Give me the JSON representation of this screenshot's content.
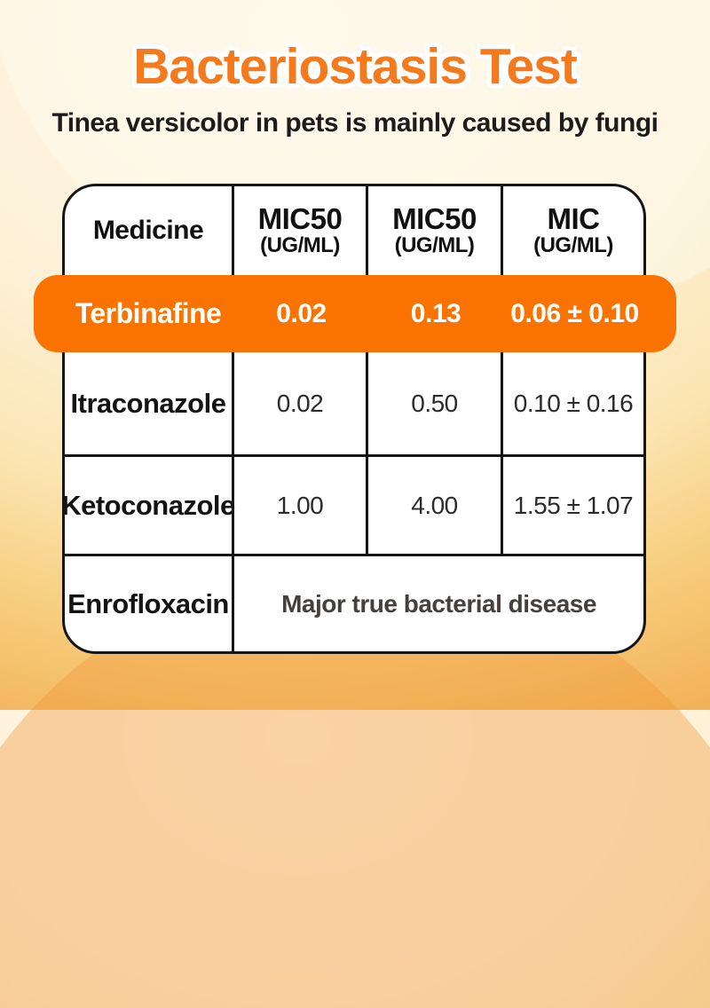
{
  "header": {
    "title": "Bacteriostasis Test",
    "subtitle": "Tinea versicolor in pets is mainly caused by fungi"
  },
  "colors": {
    "accent_orange": "#FA7300",
    "title_orange": "#F5791D",
    "background_top": "#FFF7E9",
    "background_bottom": "#F0A24B",
    "table_border": "#151515"
  },
  "table": {
    "columns": [
      {
        "label": "Medicine",
        "unit": ""
      },
      {
        "label": "MIC50",
        "unit": "(UG/ML)"
      },
      {
        "label": "MIC50",
        "unit": "(UG/ML)"
      },
      {
        "label": "MIC",
        "unit": "(UG/ML)"
      }
    ],
    "highlight_row": {
      "medicine": "Terbinafine",
      "values": [
        "0.02",
        "0.13",
        "0.06 ± 0.10"
      ]
    },
    "rows": [
      {
        "medicine": "Itraconazole",
        "values": [
          "0.02",
          "0.50",
          "0.10 ± 0.16"
        ]
      },
      {
        "medicine": "Ketoconazole",
        "values": [
          "1.00",
          "4.00",
          "1.55 ± 1.07"
        ]
      },
      {
        "medicine": "Enrofloxacin",
        "merged_note": "Major true bacterial disease"
      }
    ]
  },
  "chart_data": {
    "type": "table",
    "title": "Bacteriostasis Test",
    "subtitle": "Tinea versicolor in pets is mainly caused by fungi",
    "columns": [
      "Medicine",
      "MIC50 (UG/ML)",
      "MIC50 (UG/ML)",
      "MIC (UG/ML)"
    ],
    "rows": [
      [
        "Terbinafine",
        "0.02",
        "0.13",
        "0.06 ± 0.10"
      ],
      [
        "Itraconazole",
        "0.02",
        "0.50",
        "0.10 ± 0.16"
      ],
      [
        "Ketoconazole",
        "1.00",
        "4.00",
        "1.55 ± 1.07"
      ],
      [
        "Enrofloxacin",
        "Major true bacterial disease",
        "",
        ""
      ]
    ],
    "highlighted_row": "Terbinafine",
    "layout": {
      "highlight_color": "#FA7300",
      "grid": "on",
      "merged_last_row_note": true
    }
  }
}
